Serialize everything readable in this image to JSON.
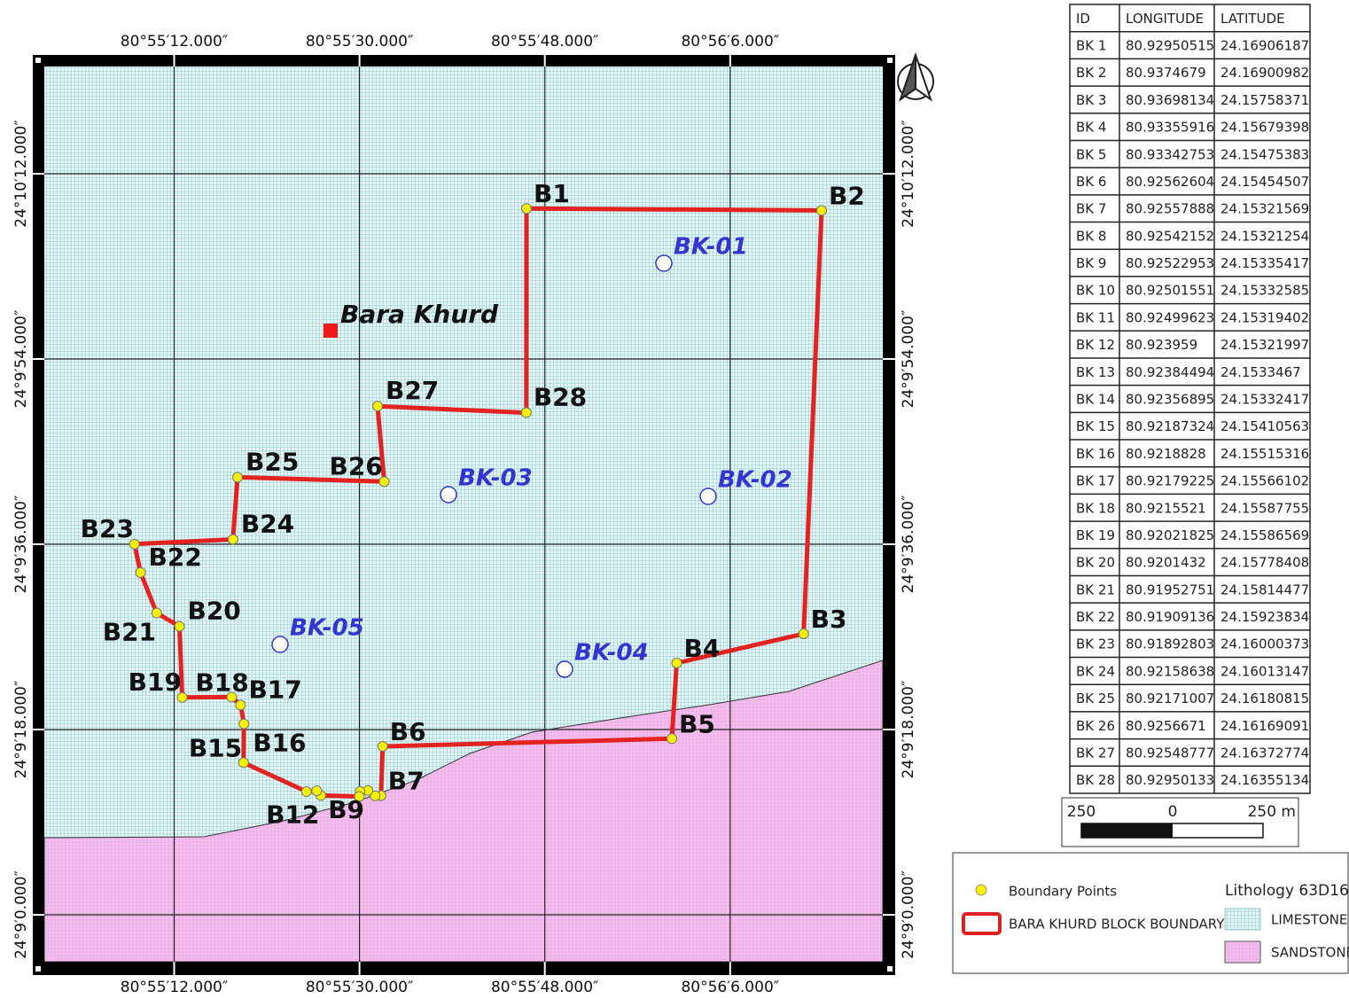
{
  "map": {
    "x_ticks": [
      {
        "value": 80.92,
        "label": "80°55′12.000″"
      },
      {
        "value": 80.925,
        "label": "80°55′30.000″"
      },
      {
        "value": 80.93,
        "label": "80°55′48.000″"
      },
      {
        "value": 80.935,
        "label": "80°56′6.000″"
      }
    ],
    "y_ticks": [
      {
        "value": 24.17,
        "label": "24°10′12.000″"
      },
      {
        "value": 24.165,
        "label": "24°9′54.000″"
      },
      {
        "value": 24.16,
        "label": "24°9′36.000″"
      },
      {
        "value": 24.155,
        "label": "24°9′18.000″"
      },
      {
        "value": 24.15,
        "label": "24°9′0.000″"
      }
    ],
    "place": "Bara Khurd",
    "boreholes": [
      "BK-01",
      "BK-02",
      "BK-03",
      "BK-04",
      "BK-05"
    ],
    "boundary_labels": [
      "B1",
      "B2",
      "B3",
      "B4",
      "B5",
      "B6",
      "B7",
      null,
      "B9",
      null,
      null,
      "B12",
      null,
      null,
      "B15",
      "B16",
      "B17",
      "B18",
      "B19",
      "B20",
      "B21",
      "B22",
      "B23",
      "B24",
      "B25",
      "B26",
      "B27",
      "B28"
    ]
  },
  "table": {
    "header": [
      "ID",
      "LONGITUDE",
      "LATITUDE"
    ],
    "rows": [
      [
        "BK 1",
        80.92950515,
        24.16906187
      ],
      [
        "BK 2",
        80.9374679,
        24.16900982
      ],
      [
        "BK 3",
        80.93698134,
        24.15758371
      ],
      [
        "BK 4",
        80.93355916,
        24.15679398
      ],
      [
        "BK 5",
        80.93342753,
        24.15475383
      ],
      [
        "BK 6",
        80.92562604,
        24.15454507
      ],
      [
        "BK 7",
        80.92557888,
        24.15321569
      ],
      [
        "BK 8",
        80.92542152,
        24.15321254
      ],
      [
        "BK 9",
        80.92522953,
        24.15335417
      ],
      [
        "BK 10",
        80.92501551,
        24.15332585
      ],
      [
        "BK 11",
        80.92499623,
        24.15319402
      ],
      [
        "BK 12",
        80.923959,
        24.15321997
      ],
      [
        "BK 13",
        80.92384494,
        24.1533467
      ],
      [
        "BK 14",
        80.92356895,
        24.15332417
      ],
      [
        "BK 15",
        80.92187324,
        24.15410563
      ],
      [
        "BK 16",
        80.9218828,
        24.15515316
      ],
      [
        "BK 17",
        80.92179225,
        24.15566102
      ],
      [
        "BK 18",
        80.9215521,
        24.15587755
      ],
      [
        "BK 19",
        80.92021825,
        24.15586569
      ],
      [
        "BK 20",
        80.9201432,
        24.15778408
      ],
      [
        "BK 21",
        80.91952751,
        24.15814477
      ],
      [
        "BK 22",
        80.91909136,
        24.15923834
      ],
      [
        "BK 23",
        80.91892803,
        24.16000373
      ],
      [
        "BK 24",
        80.92158638,
        24.16013147
      ],
      [
        "BK 25",
        80.92171007,
        24.16180815
      ],
      [
        "BK 26",
        80.9256671,
        24.16169091
      ],
      [
        "BK 27",
        80.92548777,
        24.16372774
      ],
      [
        "BK 28",
        80.92950133,
        24.16355134
      ]
    ]
  },
  "scale_bar": {
    "labels": [
      "250",
      "0",
      "250 m"
    ]
  },
  "legend": {
    "boundary_points": "Boundary Points",
    "boundary": "BARA KHURD BLOCK BOUNDARY",
    "lithology_title": "Lithology 63D16",
    "limestone": "LIMESTONE",
    "sandstone": "SANDSTONE"
  }
}
